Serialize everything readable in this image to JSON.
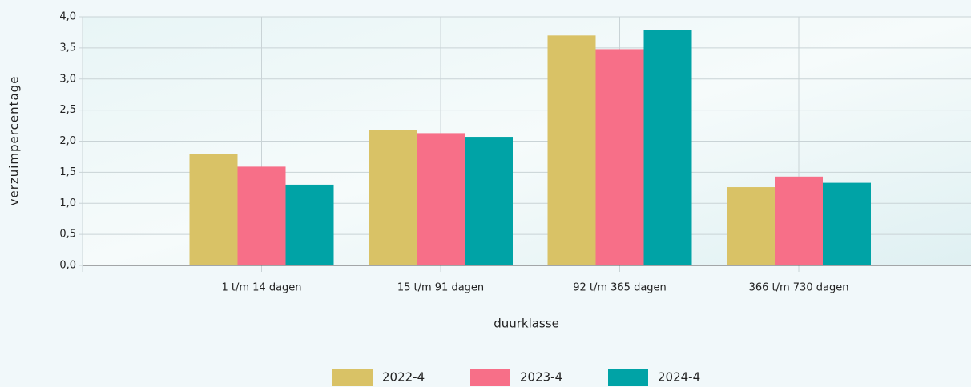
{
  "chart_data": {
    "type": "bar",
    "x_label": "duurklasse",
    "y_label": "verzuimpercentage",
    "categories": [
      "1 t/m 14 dagen",
      "15 t/m 91 dagen",
      "92 t/m 365 dagen",
      "366 t/m 730 dagen"
    ],
    "series": [
      {
        "name": "2022-4",
        "color": "#d9c266",
        "values": [
          1.79,
          2.18,
          3.7,
          1.26
        ]
      },
      {
        "name": "2023-4",
        "color": "#f76f88",
        "values": [
          1.59,
          2.13,
          3.48,
          1.43
        ]
      },
      {
        "name": "2024-4",
        "color": "#00a3a6",
        "values": [
          1.3,
          2.07,
          3.79,
          1.33
        ]
      }
    ],
    "ylim": [
      0,
      4
    ],
    "yticks": [
      {
        "value": 0,
        "label": "0,0"
      },
      {
        "value": 0.5,
        "label": "0,5"
      },
      {
        "value": 1,
        "label": "1,0"
      },
      {
        "value": 1.5,
        "label": "1,5"
      },
      {
        "value": 2,
        "label": "2,0"
      },
      {
        "value": 2.5,
        "label": "2,5"
      },
      {
        "value": 3,
        "label": "3,0"
      },
      {
        "value": 3.5,
        "label": "3,5"
      },
      {
        "value": 4,
        "label": "4,0"
      }
    ],
    "grid": true,
    "legend": "bottom"
  }
}
